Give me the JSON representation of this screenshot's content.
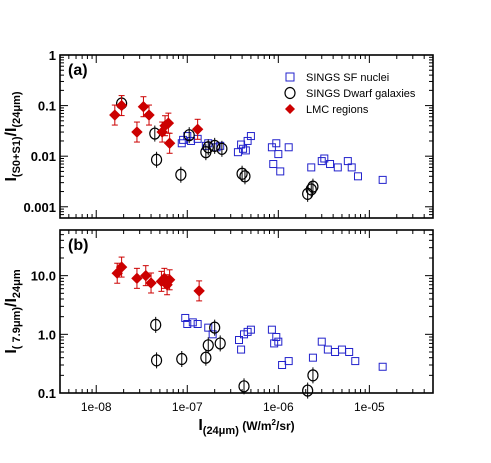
{
  "chart_data": [
    {
      "type": "scatter",
      "panel_label": "(a)",
      "xscale": "log",
      "yscale": "log",
      "xlim": [
        4e-09,
        5e-05
      ],
      "ylim": [
        0.0006,
        1
      ],
      "xticks": [
        {
          "value": 1e-08,
          "label": "1e-08"
        },
        {
          "value": 1e-07,
          "label": "1e-07"
        },
        {
          "value": 1e-06,
          "label": "1e-06"
        },
        {
          "value": 1e-05,
          "label": "1e-05"
        }
      ],
      "yticks": [
        {
          "value": 0.001,
          "label": "0.001"
        },
        {
          "value": 0.01,
          "label": "0.01"
        },
        {
          "value": 0.1,
          "label": "0.1"
        },
        {
          "value": 1,
          "label": "1"
        }
      ],
      "ylabel_main": "I",
      "ylabel_sub": "(S0+S1)",
      "ylabel_mid": "/I",
      "ylabel_sub2": "(24μm)",
      "legend_position": "top-right",
      "series": [
        {
          "name": "SINGS SF nuclei",
          "marker": "open-square",
          "color": "#2222cc",
          "points": [
            {
              "x": 8.7e-08,
              "y": 0.018
            },
            {
              "x": 9e-08,
              "y": 0.021
            },
            {
              "x": 1e-07,
              "y": 0.025
            },
            {
              "x": 1.1e-07,
              "y": 0.02
            },
            {
              "x": 1.3e-07,
              "y": 0.022
            },
            {
              "x": 1.6e-07,
              "y": 0.016
            },
            {
              "x": 1.7e-07,
              "y": 0.018
            },
            {
              "x": 2.1e-07,
              "y": 0.015
            },
            {
              "x": 2.3e-07,
              "y": 0.016
            },
            {
              "x": 3.6e-07,
              "y": 0.012
            },
            {
              "x": 3.9e-07,
              "y": 0.017
            },
            {
              "x": 4.1e-07,
              "y": 0.014
            },
            {
              "x": 4.4e-07,
              "y": 0.013
            },
            {
              "x": 4.6e-07,
              "y": 0.02
            },
            {
              "x": 5e-07,
              "y": 0.025
            },
            {
              "x": 8.5e-07,
              "y": 0.015
            },
            {
              "x": 8.8e-07,
              "y": 0.007
            },
            {
              "x": 9.5e-07,
              "y": 0.018
            },
            {
              "x": 1e-06,
              "y": 0.011
            },
            {
              "x": 1.05e-06,
              "y": 0.005
            },
            {
              "x": 1.3e-06,
              "y": 0.015
            },
            {
              "x": 2.3e-06,
              "y": 0.006
            },
            {
              "x": 3e-06,
              "y": 0.008
            },
            {
              "x": 3.2e-06,
              "y": 0.009
            },
            {
              "x": 3.7e-06,
              "y": 0.007
            },
            {
              "x": 4.5e-06,
              "y": 0.006
            },
            {
              "x": 5.8e-06,
              "y": 0.008
            },
            {
              "x": 6.4e-06,
              "y": 0.006
            },
            {
              "x": 7.5e-06,
              "y": 0.004
            },
            {
              "x": 1.4e-05,
              "y": 0.0034
            }
          ]
        },
        {
          "name": "SINGS Dwarf galaxies",
          "marker": "open-circle",
          "color": "#000000",
          "points": [
            {
              "x": 1.9e-08,
              "y": 0.11
            },
            {
              "x": 4.4e-08,
              "y": 0.028
            },
            {
              "x": 4.6e-08,
              "y": 0.0085
            },
            {
              "x": 8.5e-08,
              "y": 0.0043
            },
            {
              "x": 1.05e-07,
              "y": 0.026
            },
            {
              "x": 1.6e-07,
              "y": 0.012
            },
            {
              "x": 1.7e-07,
              "y": 0.015
            },
            {
              "x": 2e-07,
              "y": 0.016
            },
            {
              "x": 2.4e-07,
              "y": 0.014
            },
            {
              "x": 4e-07,
              "y": 0.0045
            },
            {
              "x": 4.3e-07,
              "y": 0.004
            },
            {
              "x": 2.1e-06,
              "y": 0.0018
            },
            {
              "x": 2.3e-06,
              "y": 0.0022
            },
            {
              "x": 2.4e-06,
              "y": 0.0025
            }
          ]
        },
        {
          "name": "LMC regions",
          "marker": "filled-diamond",
          "color": "#cc0000",
          "points": [
            {
              "x": 1.6e-08,
              "y": 0.065
            },
            {
              "x": 1.9e-08,
              "y": 0.1
            },
            {
              "x": 2.8e-08,
              "y": 0.03
            },
            {
              "x": 3.3e-08,
              "y": 0.095
            },
            {
              "x": 3.8e-08,
              "y": 0.065
            },
            {
              "x": 5.3e-08,
              "y": 0.03
            },
            {
              "x": 5.7e-08,
              "y": 0.04
            },
            {
              "x": 6.2e-08,
              "y": 0.045
            },
            {
              "x": 6.4e-08,
              "y": 0.018
            },
            {
              "x": 1.3e-07,
              "y": 0.034
            }
          ]
        }
      ]
    },
    {
      "type": "scatter",
      "panel_label": "(b)",
      "xscale": "log",
      "yscale": "log",
      "xlim": [
        4e-09,
        5e-05
      ],
      "ylim": [
        0.1,
        60
      ],
      "xticks": [
        {
          "value": 1e-08,
          "label": "1e-08"
        },
        {
          "value": 1e-07,
          "label": "1e-07"
        },
        {
          "value": 1e-06,
          "label": "1e-06"
        },
        {
          "value": 1e-05,
          "label": "1e-05"
        }
      ],
      "yticks": [
        {
          "value": 0.1,
          "label": "0.1"
        },
        {
          "value": 1,
          "label": "1.0"
        },
        {
          "value": 10,
          "label": "10.0"
        }
      ],
      "ylabel_main": "I",
      "ylabel_sub": "( 7.9μm)",
      "ylabel_mid": "/I",
      "ylabel_sub2": "24μm",
      "xlabel_main": "I",
      "xlabel_sub": "(24μm)",
      "xlabel_unit": " (W/m",
      "xlabel_sup": "2",
      "xlabel_end": "/sr)",
      "series": [
        {
          "name": "SINGS SF nuclei",
          "marker": "open-square",
          "color": "#2222cc",
          "points": [
            {
              "x": 9.5e-08,
              "y": 1.9
            },
            {
              "x": 1e-07,
              "y": 1.5
            },
            {
              "x": 1.15e-07,
              "y": 1.6
            },
            {
              "x": 1.3e-07,
              "y": 1.5
            },
            {
              "x": 1.7e-07,
              "y": 1.3
            },
            {
              "x": 1.9e-07,
              "y": 1.0
            },
            {
              "x": 3.7e-07,
              "y": 0.8
            },
            {
              "x": 3.9e-07,
              "y": 0.55
            },
            {
              "x": 4.2e-07,
              "y": 1.0
            },
            {
              "x": 4.6e-07,
              "y": 1.1
            },
            {
              "x": 5e-07,
              "y": 1.2
            },
            {
              "x": 8.5e-07,
              "y": 1.2
            },
            {
              "x": 9e-07,
              "y": 0.7
            },
            {
              "x": 9.5e-07,
              "y": 0.9
            },
            {
              "x": 1e-06,
              "y": 0.75
            },
            {
              "x": 1.1e-06,
              "y": 0.3
            },
            {
              "x": 1.3e-06,
              "y": 0.35
            },
            {
              "x": 2.4e-06,
              "y": 0.4
            },
            {
              "x": 3e-06,
              "y": 0.75
            },
            {
              "x": 3.5e-06,
              "y": 0.55
            },
            {
              "x": 4.2e-06,
              "y": 0.5
            },
            {
              "x": 5e-06,
              "y": 0.55
            },
            {
              "x": 6e-06,
              "y": 0.5
            },
            {
              "x": 7e-06,
              "y": 0.35
            },
            {
              "x": 1.4e-05,
              "y": 0.28
            }
          ]
        },
        {
          "name": "SINGS Dwarf galaxies",
          "marker": "open-circle",
          "color": "#000000",
          "points": [
            {
              "x": 4.5e-08,
              "y": 1.45
            },
            {
              "x": 4.6e-08,
              "y": 0.36
            },
            {
              "x": 8.7e-08,
              "y": 0.38
            },
            {
              "x": 1.6e-07,
              "y": 0.4
            },
            {
              "x": 1.7e-07,
              "y": 0.65
            },
            {
              "x": 2e-07,
              "y": 1.3
            },
            {
              "x": 2.3e-07,
              "y": 0.7
            },
            {
              "x": 4.2e-07,
              "y": 0.13
            },
            {
              "x": 2.1e-06,
              "y": 0.11
            },
            {
              "x": 2.4e-06,
              "y": 0.2
            }
          ]
        },
        {
          "name": "LMC regions",
          "marker": "filled-diamond",
          "color": "#cc0000",
          "points": [
            {
              "x": 1.7e-08,
              "y": 11
            },
            {
              "x": 1.9e-08,
              "y": 14
            },
            {
              "x": 2.8e-08,
              "y": 9
            },
            {
              "x": 3.5e-08,
              "y": 10
            },
            {
              "x": 4e-08,
              "y": 7.5
            },
            {
              "x": 5.2e-08,
              "y": 8
            },
            {
              "x": 5.6e-08,
              "y": 9
            },
            {
              "x": 6e-08,
              "y": 7
            },
            {
              "x": 6.4e-08,
              "y": 8.5
            },
            {
              "x": 1.35e-07,
              "y": 5.5
            }
          ]
        }
      ]
    }
  ]
}
